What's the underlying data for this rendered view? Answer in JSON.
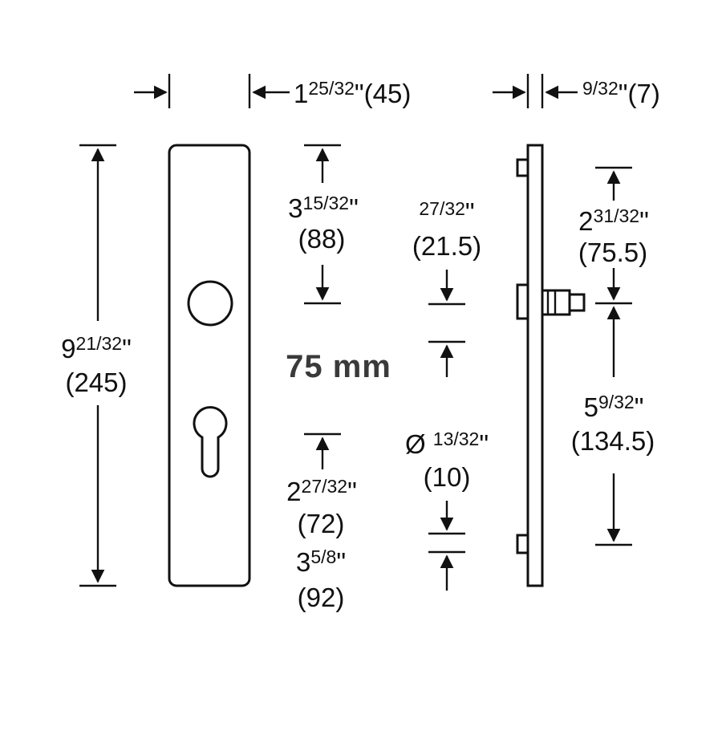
{
  "dimensions": {
    "plate_width": {
      "whole": "1",
      "frac": "25/32",
      "inch": "\"",
      "mm": "(45)"
    },
    "plate_thickness": {
      "frac": "9/32",
      "inch": "\"",
      "mm": "(7)"
    },
    "plate_height": {
      "whole": "9",
      "frac": "21/32",
      "inch": "\"",
      "mm": "(245)"
    },
    "top_to_handle": {
      "whole": "3",
      "frac": "15/32",
      "inch": "\"",
      "mm": "(88)"
    },
    "spindle_square": {
      "frac": "27/32",
      "inch": "\"",
      "mm": "(21.5)"
    },
    "top_to_spindle": {
      "whole": "2",
      "frac": "31/32",
      "inch": "\"",
      "mm": "(75.5)"
    },
    "center_distance": "75 mm",
    "cylinder_to_bottom": {
      "whole": "2",
      "frac": "27/32",
      "inch": "\"",
      "mm": "(72)"
    },
    "cylinder_diameter": {
      "symbol": "Ø",
      "frac": "13/32",
      "inch": "\"",
      "mm": "(10)"
    },
    "spindle_to_bottom": {
      "whole": "5",
      "frac": "9/32",
      "inch": "\"",
      "mm": "(134.5)"
    },
    "bottom_distance": {
      "whole": "3",
      "frac": "5/8",
      "inch": "\"",
      "mm": "(92)"
    }
  }
}
